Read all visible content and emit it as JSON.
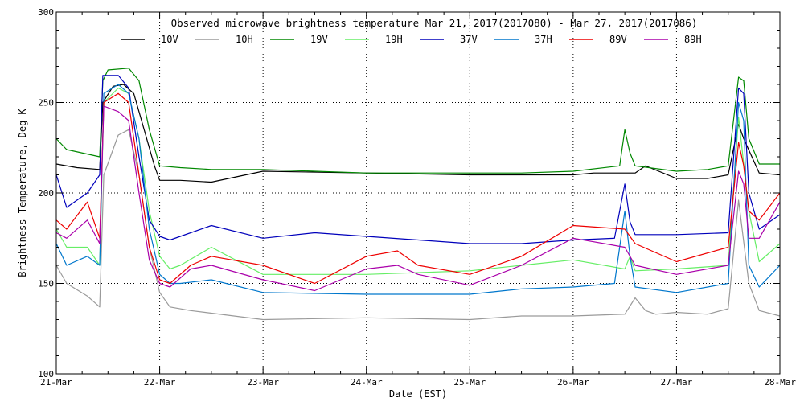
{
  "chart_data": {
    "type": "line",
    "title": "Observed microwave brightness temperature Mar 21, 2017(2017080) - Mar 27, 2017(2017086)",
    "xlabel": "Date (EST)",
    "ylabel": "Brightness Temperature, Deg K",
    "ylim": [
      100,
      300
    ],
    "xlim": [
      0,
      7
    ],
    "yticks": [
      100,
      150,
      200,
      250,
      300
    ],
    "ytick_labels": [
      "100",
      "150",
      "200",
      "250",
      "300"
    ],
    "xticks": [
      0,
      1,
      2,
      3,
      4,
      5,
      6,
      7
    ],
    "xtick_labels": [
      "21-Mar",
      "22-Mar",
      "23-Mar",
      "24-Mar",
      "25-Mar",
      "26-Mar",
      "27-Mar",
      "28-Mar"
    ],
    "grid": true,
    "legend_position": "top",
    "series": [
      {
        "name": "10V",
        "color": "#000000",
        "x": [
          0,
          0.2,
          0.42,
          0.45,
          0.55,
          0.65,
          0.75,
          0.85,
          0.95,
          1.0,
          1.2,
          1.5,
          2.0,
          3.0,
          4.0,
          4.5,
          5.0,
          5.2,
          5.4,
          5.6,
          5.7,
          6.0,
          6.3,
          6.5,
          6.6,
          6.65,
          6.8,
          7.0
        ],
        "y": [
          216,
          214,
          213,
          250,
          259,
          260,
          255,
          235,
          215,
          207,
          207,
          206,
          212,
          211,
          210,
          210,
          210,
          211,
          211,
          211,
          215,
          208,
          208,
          210,
          238,
          230,
          211,
          210
        ]
      },
      {
        "name": "10H",
        "color": "#9a9a9a",
        "x": [
          0,
          0.1,
          0.3,
          0.42,
          0.46,
          0.6,
          0.7,
          0.8,
          0.9,
          1.0,
          1.1,
          1.3,
          2.0,
          3.0,
          4.0,
          4.5,
          5.0,
          5.5,
          5.6,
          5.7,
          5.8,
          6.0,
          6.3,
          6.5,
          6.6,
          6.7,
          6.8,
          7.0
        ],
        "y": [
          160,
          150,
          143,
          137,
          210,
          232,
          235,
          210,
          170,
          145,
          137,
          135,
          130,
          131,
          130,
          132,
          132,
          133,
          142,
          135,
          133,
          134,
          133,
          136,
          196,
          150,
          135,
          132
        ]
      },
      {
        "name": "19V",
        "color": "#008800",
        "x": [
          0,
          0.1,
          0.42,
          0.45,
          0.5,
          0.7,
          0.8,
          0.9,
          1.0,
          1.2,
          1.5,
          2.0,
          3.0,
          4.0,
          4.5,
          5.0,
          5.45,
          5.5,
          5.55,
          5.6,
          6.0,
          6.3,
          6.5,
          6.6,
          6.65,
          6.7,
          6.8,
          7.0
        ],
        "y": [
          230,
          224,
          220,
          262,
          268,
          269,
          262,
          235,
          215,
          214,
          213,
          213,
          211,
          211,
          211,
          212,
          215,
          235,
          222,
          215,
          212,
          213,
          215,
          264,
          262,
          230,
          216,
          216
        ]
      },
      {
        "name": "19H",
        "color": "#66ee66",
        "x": [
          0,
          0.1,
          0.3,
          0.42,
          0.46,
          0.6,
          0.7,
          0.8,
          0.9,
          1.0,
          1.1,
          1.2,
          1.5,
          2.0,
          3.0,
          4.0,
          4.5,
          5.0,
          5.5,
          5.55,
          5.6,
          6.0,
          6.5,
          6.6,
          6.7,
          6.8,
          7.0
        ],
        "y": [
          180,
          170,
          170,
          160,
          250,
          258,
          255,
          230,
          190,
          165,
          158,
          160,
          170,
          155,
          155,
          157,
          160,
          163,
          158,
          165,
          157,
          158,
          160,
          242,
          190,
          162,
          172
        ]
      },
      {
        "name": "37V",
        "color": "#0000bb",
        "x": [
          0,
          0.1,
          0.3,
          0.42,
          0.45,
          0.6,
          0.7,
          0.8,
          0.9,
          1.0,
          1.1,
          1.2,
          1.5,
          2.0,
          2.5,
          3.0,
          4.0,
          4.5,
          5.0,
          5.4,
          5.5,
          5.55,
          5.6,
          6.0,
          6.5,
          6.6,
          6.65,
          6.7,
          6.8,
          7.0
        ],
        "y": [
          210,
          192,
          200,
          210,
          265,
          265,
          258,
          220,
          185,
          176,
          174,
          176,
          182,
          175,
          178,
          176,
          172,
          172,
          174,
          175,
          205,
          184,
          177,
          177,
          178,
          258,
          255,
          200,
          180,
          188
        ]
      },
      {
        "name": "37H",
        "color": "#0077cc",
        "x": [
          0,
          0.1,
          0.3,
          0.42,
          0.46,
          0.6,
          0.7,
          0.8,
          0.9,
          1.0,
          1.1,
          1.2,
          1.5,
          2.0,
          3.0,
          4.0,
          4.5,
          5.0,
          5.4,
          5.5,
          5.55,
          5.6,
          6.0,
          6.5,
          6.6,
          6.65,
          6.7,
          6.8,
          7.0
        ],
        "y": [
          172,
          160,
          165,
          160,
          255,
          260,
          255,
          230,
          180,
          155,
          150,
          150,
          152,
          145,
          144,
          144,
          147,
          148,
          150,
          190,
          165,
          148,
          145,
          150,
          250,
          240,
          160,
          148,
          160
        ]
      },
      {
        "name": "89V",
        "color": "#ee0000",
        "x": [
          0,
          0.1,
          0.3,
          0.42,
          0.46,
          0.6,
          0.7,
          0.8,
          0.9,
          1.0,
          1.1,
          1.3,
          1.5,
          2.0,
          2.5,
          3.0,
          3.3,
          3.5,
          4.0,
          4.5,
          5.0,
          5.5,
          5.6,
          6.0,
          6.5,
          6.6,
          6.65,
          6.7,
          6.8,
          7.0
        ],
        "y": [
          185,
          180,
          195,
          175,
          250,
          255,
          250,
          210,
          170,
          152,
          150,
          160,
          165,
          160,
          150,
          165,
          168,
          160,
          155,
          165,
          182,
          180,
          172,
          162,
          170,
          228,
          215,
          190,
          185,
          200
        ]
      },
      {
        "name": "89H",
        "color": "#aa00aa",
        "x": [
          0,
          0.1,
          0.3,
          0.42,
          0.46,
          0.6,
          0.7,
          0.8,
          0.9,
          1.0,
          1.1,
          1.3,
          1.5,
          2.0,
          2.5,
          3.0,
          3.3,
          3.5,
          4.0,
          4.5,
          5.0,
          5.5,
          5.6,
          6.0,
          6.5,
          6.6,
          6.65,
          6.7,
          6.8,
          7.0
        ],
        "y": [
          178,
          175,
          185,
          172,
          248,
          245,
          240,
          200,
          163,
          150,
          148,
          158,
          160,
          152,
          146,
          158,
          160,
          155,
          149,
          160,
          175,
          170,
          160,
          155,
          160,
          212,
          205,
          175,
          175,
          195
        ]
      }
    ]
  }
}
